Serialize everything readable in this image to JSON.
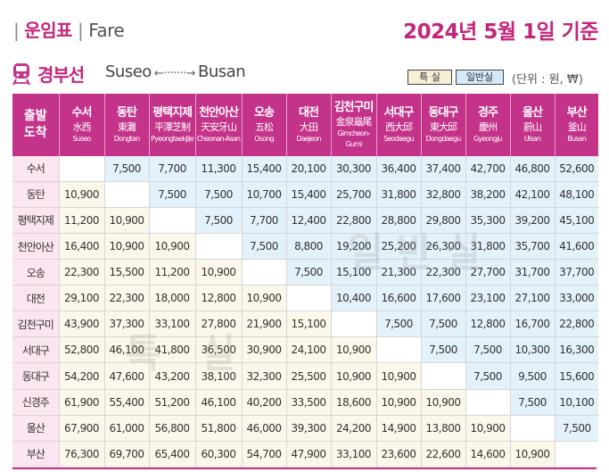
{
  "header": {
    "section": "운임표",
    "subsection": "Fare",
    "date_title": "2024년 5월 1일 기준"
  },
  "line": {
    "name": "경부선",
    "from": "Suseo",
    "arrow": "←·······→",
    "to": "Busan",
    "icon": "train-icon"
  },
  "legend": {
    "express": "특 실",
    "normal": "일반실",
    "express_color": "#f6efd5",
    "normal_color": "#d3e9f7"
  },
  "unit": "(단위 : 원, ₩)",
  "corner": {
    "top": "출발",
    "bottom": "도착"
  },
  "stations": [
    {
      "ko": "수서",
      "hj": "水西",
      "en": "Suseo"
    },
    {
      "ko": "동탄",
      "hj": "東灘",
      "en": "Dongtan"
    },
    {
      "ko": "평택지제",
      "hj": "平澤芝制",
      "en": "PyeongtaekJije"
    },
    {
      "ko": "천안아산",
      "hj": "天安牙山",
      "en": "Cheonan-Asan"
    },
    {
      "ko": "오송",
      "hj": "五松",
      "en": "Osong"
    },
    {
      "ko": "대전",
      "hj": "大田",
      "en": "Daejeon"
    },
    {
      "ko": "김천구미",
      "hj": "金泉龜尾",
      "en": "Gimcheon-Gumi"
    },
    {
      "ko": "서대구",
      "hj": "西大邱",
      "en": "Seodaegu"
    },
    {
      "ko": "동대구",
      "hj": "東大邱",
      "en": "Dongdaegu"
    },
    {
      "ko": "경주",
      "hj": "慶州",
      "en": "Gyeongju"
    },
    {
      "ko": "울산",
      "hj": "蔚山",
      "en": "Ulsan"
    },
    {
      "ko": "부산",
      "hj": "釜山",
      "en": "Busan"
    }
  ],
  "rows": [
    {
      "station": "수서",
      "fares": [
        "",
        "7,500",
        "7,700",
        "11,300",
        "15,400",
        "20,100",
        "30,300",
        "36,400",
        "37,400",
        "42,700",
        "46,800",
        "52,600"
      ]
    },
    {
      "station": "동탄",
      "fares": [
        "10,900",
        "",
        "7,500",
        "7,500",
        "10,700",
        "15,400",
        "25,700",
        "31,800",
        "32,800",
        "38,200",
        "42,100",
        "48,100"
      ]
    },
    {
      "station": "평택지제",
      "fares": [
        "11,200",
        "10,900",
        "",
        "7,500",
        "7,700",
        "12,400",
        "22,800",
        "28,800",
        "29,800",
        "35,300",
        "39,200",
        "45,100"
      ]
    },
    {
      "station": "천안아산",
      "fares": [
        "16,400",
        "10,900",
        "10,900",
        "",
        "7,500",
        "8,800",
        "19,200",
        "25,200",
        "26,300",
        "31,800",
        "35,700",
        "41,600"
      ]
    },
    {
      "station": "오송",
      "fares": [
        "22,300",
        "15,500",
        "11,200",
        "10,900",
        "",
        "7,500",
        "15,100",
        "21,300",
        "22,300",
        "27,700",
        "31,700",
        "37,700"
      ]
    },
    {
      "station": "대전",
      "fares": [
        "29,100",
        "22,300",
        "18,000",
        "12,800",
        "10,900",
        "",
        "10,400",
        "16,600",
        "17,600",
        "23,100",
        "27,100",
        "33,000"
      ]
    },
    {
      "station": "김천구미",
      "fares": [
        "43,900",
        "37,300",
        "33,100",
        "27,800",
        "21,900",
        "15,100",
        "",
        "7,500",
        "7,500",
        "12,800",
        "16,700",
        "22,800"
      ]
    },
    {
      "station": "서대구",
      "fares": [
        "52,800",
        "46,100",
        "41,800",
        "36,500",
        "30,900",
        "24,100",
        "10,900",
        "",
        "7,500",
        "7,500",
        "10,300",
        "16,300"
      ]
    },
    {
      "station": "동대구",
      "fares": [
        "54,200",
        "47,600",
        "43,200",
        "38,100",
        "32,300",
        "25,500",
        "10,900",
        "10,900",
        "",
        "7,500",
        "9,500",
        "15,600"
      ]
    },
    {
      "station": "신경주",
      "fares": [
        "61,900",
        "55,400",
        "51,200",
        "46,100",
        "40,200",
        "33,500",
        "18,600",
        "10,900",
        "10,900",
        "",
        "7,500",
        "10,100"
      ]
    },
    {
      "station": "울산",
      "fares": [
        "67,900",
        "61,000",
        "56,800",
        "51,800",
        "46,000",
        "39,300",
        "24,200",
        "14,900",
        "13,800",
        "10,900",
        "",
        "7,500"
      ]
    },
    {
      "station": "부산",
      "fares": [
        "76,300",
        "69,700",
        "65,400",
        "60,300",
        "54,700",
        "47,900",
        "33,100",
        "23,600",
        "22,600",
        "14,600",
        "10,900",
        ""
      ]
    }
  ],
  "watermarks": {
    "normal": "일반실",
    "express": "특 실"
  },
  "accent_color": "#c4338a"
}
